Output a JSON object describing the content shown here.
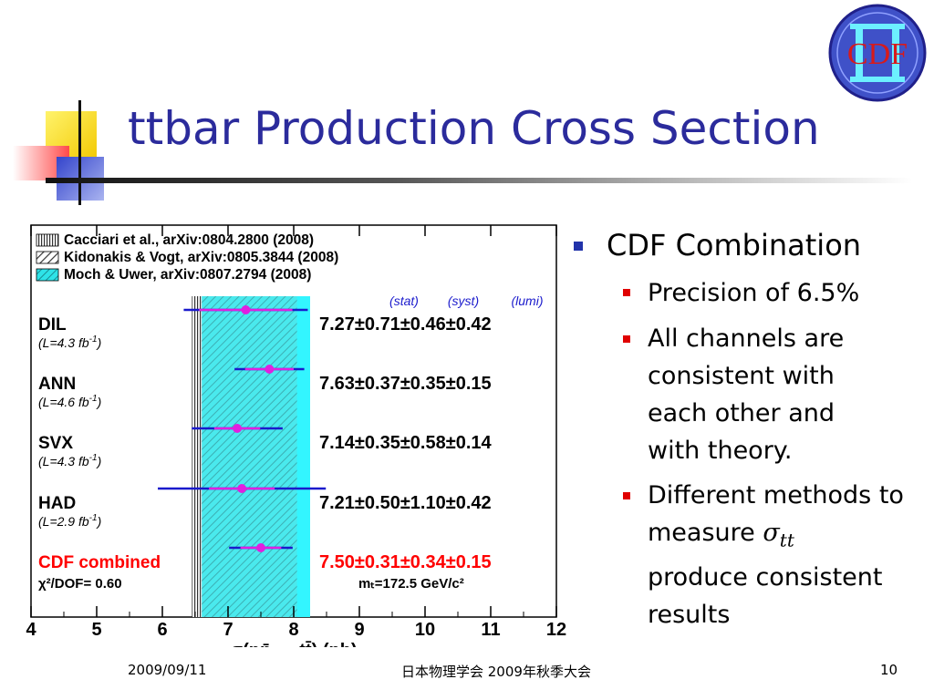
{
  "slide": {
    "title": "ttbar Production Cross Section",
    "footer": {
      "date": "2009/09/11",
      "center": "日本物理学会 2009年秋季大会",
      "page": "10"
    },
    "logo_text": "CDF"
  },
  "bullets": {
    "main": "CDF Combination",
    "subs": [
      "Precision of 6.5%",
      "All channels are consistent with each other and with theory.",
      "Different methods to measure",
      "produce consistent results"
    ],
    "symbol": "σ",
    "symbol_sub": "tt"
  },
  "chart_data": {
    "type": "scatter",
    "xlabel": "σ(pp̄ → tt̄) (pb)",
    "xlim": [
      4,
      12
    ],
    "xticks": [
      4,
      5,
      6,
      7,
      8,
      9,
      10,
      11,
      12
    ],
    "legend": [
      {
        "label": "Cacciari et al., arXiv:0804.2800 (2008)",
        "pattern": "vertical-hatch",
        "range": [
          6.45,
          6.7
        ]
      },
      {
        "label": "Kidonakis & Vogt, arXiv:0805.3844 (2008)",
        "pattern": "diagonal-hatch",
        "range": [
          6.7,
          8.05
        ]
      },
      {
        "label": "Moch & Uwer, arXiv:0807.2794 (2008)",
        "pattern": "cyan",
        "range": [
          6.6,
          8.25
        ]
      }
    ],
    "uncertainty_header": {
      "stat": "(stat)",
      "syst": "(syst)",
      "lumi": "(lumi)"
    },
    "measurements": [
      {
        "name": "DIL",
        "lumi_label": "(L=4.3 fb",
        "lumi_exp": "-1",
        "value": 7.27,
        "stat": 0.71,
        "syst": 0.46,
        "lumi": 0.42,
        "text": "7.27±0.71±0.46±0.42",
        "color": "#000000"
      },
      {
        "name": "ANN",
        "lumi_label": "(L=4.6 fb",
        "lumi_exp": "-1",
        "value": 7.63,
        "stat": 0.37,
        "syst": 0.35,
        "lumi": 0.15,
        "text": "7.63±0.37±0.35±0.15",
        "color": "#000000"
      },
      {
        "name": "SVX",
        "lumi_label": "(L=4.3 fb",
        "lumi_exp": "-1",
        "value": 7.14,
        "stat": 0.35,
        "syst": 0.58,
        "lumi": 0.14,
        "text": "7.14±0.35±0.58±0.14",
        "color": "#000000"
      },
      {
        "name": "HAD",
        "lumi_label": "(L=2.9 fb",
        "lumi_exp": "-1",
        "value": 7.21,
        "stat": 0.5,
        "syst": 1.1,
        "lumi": 0.42,
        "text": "7.21±0.50±1.10±0.42",
        "color": "#000000"
      },
      {
        "name": "CDF combined",
        "lumi_label": "",
        "lumi_exp": "",
        "value": 7.5,
        "stat": 0.31,
        "syst": 0.34,
        "lumi": 0.15,
        "text": "7.50±0.31±0.34±0.15",
        "color": "#ff0000"
      }
    ],
    "chi2": "χ²/DOF= 0.60",
    "mass": "mₜ=172.5 GeV/c²"
  }
}
